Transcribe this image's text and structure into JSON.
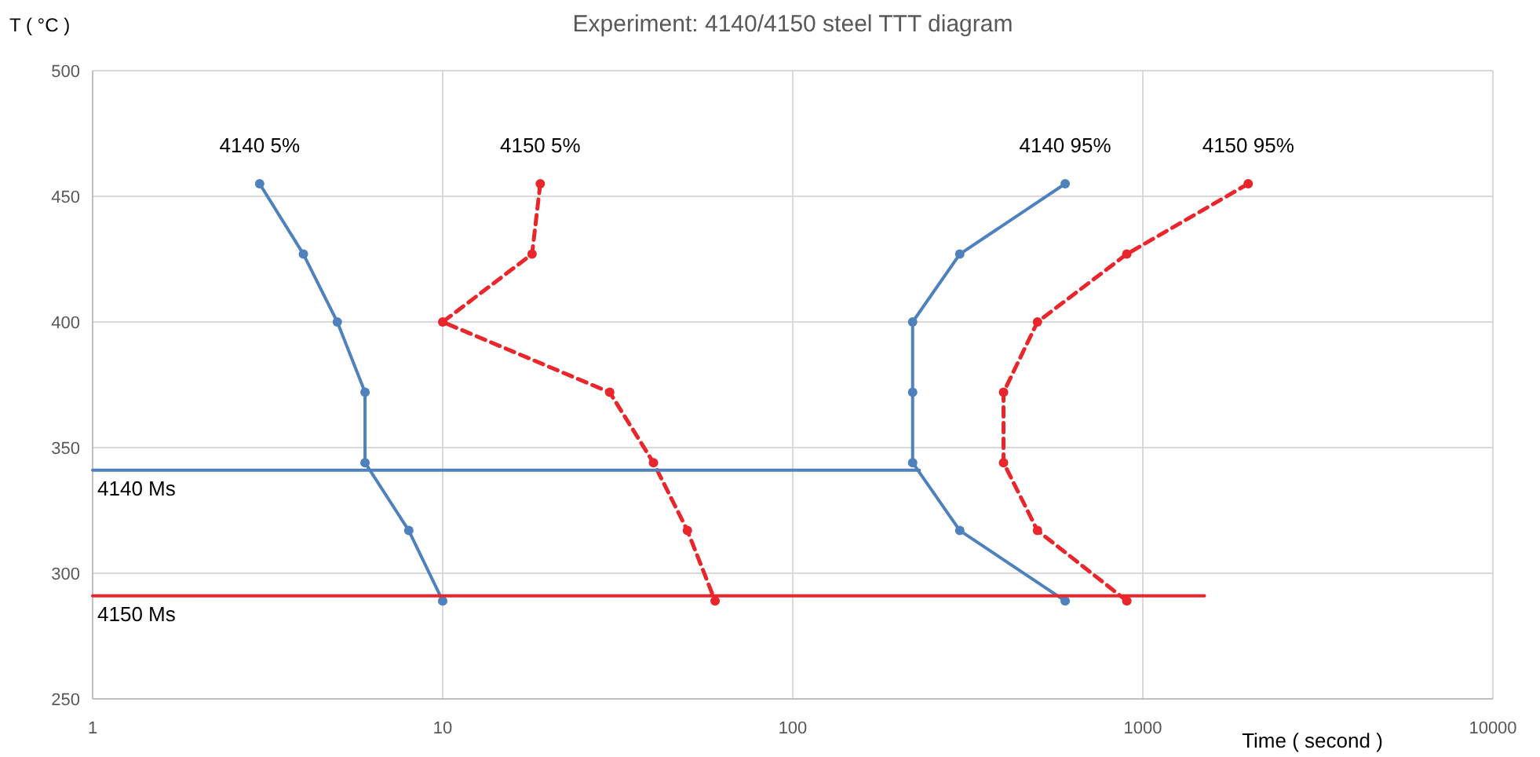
{
  "chart_data": {
    "type": "line",
    "title": "Experiment: 4140/4150 steel TTT diagram",
    "xlabel": "Time ( second )",
    "ylabel": "T ( °C )",
    "log": "x",
    "xlim": [
      1,
      10000
    ],
    "xticks": [
      1,
      10,
      100,
      1000,
      10000
    ],
    "ylim": [
      250,
      500
    ],
    "yticks": [
      250,
      300,
      350,
      400,
      450,
      500
    ],
    "grid": true,
    "series": [
      {
        "name": "4140 5%",
        "color": "#4f81bd",
        "marker": "circle",
        "line_style": "solid",
        "x": [
          3,
          4,
          5,
          6,
          6,
          8,
          10
        ],
        "values": [
          455,
          427,
          400,
          372,
          344,
          317,
          289
        ]
      },
      {
        "name": "4150 5%",
        "color": "#e8262b",
        "marker": "circle",
        "line_style": "dashed",
        "x": [
          19,
          18,
          10,
          30,
          40,
          50,
          60
        ],
        "values": [
          455,
          427,
          400,
          372,
          344,
          317,
          289
        ]
      },
      {
        "name": "4140 95%",
        "color": "#4f81bd",
        "marker": "circle",
        "line_style": "solid",
        "x": [
          600,
          300,
          220,
          220,
          220,
          300,
          600
        ],
        "values": [
          455,
          427,
          400,
          372,
          344,
          317,
          289
        ]
      },
      {
        "name": "4150 95%",
        "color": "#e8262b",
        "marker": "circle",
        "line_style": "dashed",
        "x": [
          2000,
          900,
          500,
          400,
          400,
          500,
          900
        ],
        "values": [
          455,
          427,
          400,
          372,
          344,
          317,
          289
        ]
      },
      {
        "name": "4140 Ms",
        "color": "#4f81bd",
        "marker": "none",
        "line_style": "solid",
        "x": [
          1,
          230
        ],
        "values": [
          341,
          341
        ]
      },
      {
        "name": "4150 Ms",
        "color": "#e8262b",
        "marker": "none",
        "line_style": "solid",
        "x": [
          1,
          1500
        ],
        "values": [
          291,
          291
        ]
      }
    ]
  }
}
